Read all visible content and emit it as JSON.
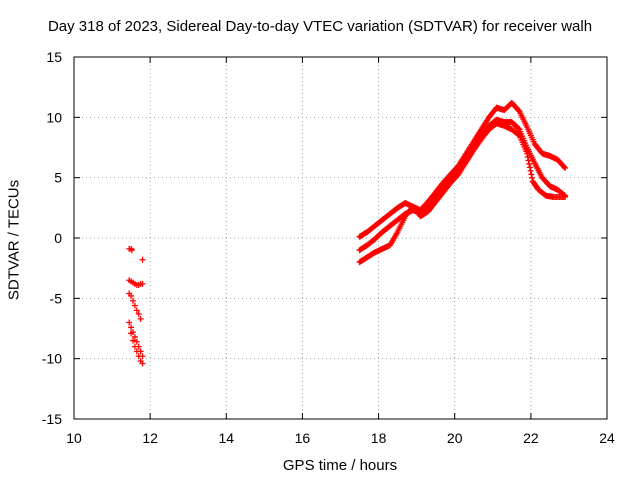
{
  "chart_data": {
    "type": "scatter",
    "title": "Day 318 of 2023, Sidereal Day-to-day VTEC variation (SDTVAR) for receiver walh",
    "xlabel": "GPS time / hours",
    "ylabel": "SDTVAR / TECUs",
    "xlim": [
      10,
      24
    ],
    "ylim": [
      -15,
      15
    ],
    "x_ticks": [
      "10",
      "12",
      "14",
      "16",
      "18",
      "20",
      "22",
      "24"
    ],
    "y_ticks": [
      "-15",
      "-10",
      "-5",
      "0",
      "5",
      "10",
      "15"
    ],
    "grid": true,
    "marker": "+",
    "marker_color": "#ff0000",
    "series": [
      {
        "name": "early-cluster",
        "points": [
          [
            11.45,
            -0.9
          ],
          [
            11.5,
            -0.9
          ],
          [
            11.52,
            -1.0
          ],
          [
            11.8,
            -1.8
          ],
          [
            11.45,
            -3.5
          ],
          [
            11.5,
            -3.6
          ],
          [
            11.55,
            -3.7
          ],
          [
            11.6,
            -3.8
          ],
          [
            11.65,
            -3.9
          ],
          [
            11.7,
            -3.9
          ],
          [
            11.75,
            -3.8
          ],
          [
            11.8,
            -3.8
          ],
          [
            11.45,
            -4.6
          ],
          [
            11.5,
            -4.8
          ],
          [
            11.55,
            -5.2
          ],
          [
            11.6,
            -5.6
          ],
          [
            11.65,
            -6.0
          ],
          [
            11.7,
            -6.3
          ],
          [
            11.75,
            -6.7
          ],
          [
            11.45,
            -7.0
          ],
          [
            11.5,
            -7.4
          ],
          [
            11.55,
            -7.8
          ],
          [
            11.6,
            -8.2
          ],
          [
            11.65,
            -8.6
          ],
          [
            11.7,
            -9.0
          ],
          [
            11.75,
            -9.4
          ],
          [
            11.8,
            -9.8
          ],
          [
            11.5,
            -7.9
          ],
          [
            11.55,
            -8.5
          ],
          [
            11.6,
            -9.0
          ],
          [
            11.65,
            -9.4
          ],
          [
            11.7,
            -9.8
          ],
          [
            11.75,
            -10.2
          ],
          [
            11.8,
            -10.4
          ]
        ]
      },
      {
        "name": "track-a",
        "points": [
          [
            17.5,
            0.1
          ],
          [
            17.7,
            0.5
          ],
          [
            17.9,
            1.0
          ],
          [
            18.1,
            1.5
          ],
          [
            18.3,
            2.0
          ],
          [
            18.5,
            2.5
          ],
          [
            18.7,
            2.9
          ],
          [
            18.9,
            2.6
          ],
          [
            19.1,
            2.3
          ],
          [
            19.3,
            3.0
          ],
          [
            19.5,
            3.8
          ],
          [
            19.7,
            4.6
          ],
          [
            19.9,
            5.3
          ],
          [
            20.1,
            6.0
          ],
          [
            20.3,
            7.0
          ],
          [
            20.5,
            8.0
          ],
          [
            20.7,
            9.0
          ],
          [
            20.9,
            10.0
          ],
          [
            21.1,
            10.8
          ],
          [
            21.3,
            10.6
          ],
          [
            21.5,
            11.2
          ],
          [
            21.7,
            10.5
          ],
          [
            21.9,
            9.2
          ],
          [
            22.1,
            7.8
          ],
          [
            22.3,
            7.0
          ],
          [
            22.5,
            6.8
          ],
          [
            22.7,
            6.5
          ],
          [
            22.9,
            5.8
          ]
        ]
      },
      {
        "name": "track-b",
        "points": [
          [
            17.5,
            -1.0
          ],
          [
            17.7,
            -0.6
          ],
          [
            17.9,
            -0.1
          ],
          [
            18.1,
            0.5
          ],
          [
            18.3,
            1.0
          ],
          [
            18.5,
            1.5
          ],
          [
            18.7,
            2.0
          ],
          [
            18.9,
            2.3
          ],
          [
            19.1,
            2.1
          ],
          [
            19.3,
            2.6
          ],
          [
            19.5,
            3.3
          ],
          [
            19.7,
            4.1
          ],
          [
            19.9,
            4.9
          ],
          [
            20.1,
            5.6
          ],
          [
            20.3,
            6.6
          ],
          [
            20.5,
            7.6
          ],
          [
            20.7,
            8.5
          ],
          [
            20.9,
            9.3
          ],
          [
            21.1,
            9.8
          ],
          [
            21.3,
            9.6
          ],
          [
            21.5,
            9.6
          ],
          [
            21.7,
            9.0
          ],
          [
            21.9,
            7.5
          ],
          [
            22.1,
            6.2
          ],
          [
            22.3,
            5.0
          ],
          [
            22.5,
            4.3
          ],
          [
            22.7,
            4.0
          ],
          [
            22.9,
            3.5
          ]
        ]
      },
      {
        "name": "track-c",
        "points": [
          [
            17.5,
            -2.0
          ],
          [
            17.7,
            -1.6
          ],
          [
            17.9,
            -1.2
          ],
          [
            18.1,
            -0.9
          ],
          [
            18.3,
            -0.6
          ],
          [
            18.5,
            0.5
          ],
          [
            18.7,
            1.8
          ],
          [
            18.9,
            2.6
          ],
          [
            19.1,
            1.8
          ],
          [
            19.3,
            2.2
          ],
          [
            19.5,
            3.0
          ],
          [
            19.7,
            3.8
          ],
          [
            19.9,
            4.6
          ],
          [
            20.1,
            5.3
          ],
          [
            20.3,
            6.3
          ],
          [
            20.5,
            7.3
          ],
          [
            20.7,
            8.2
          ],
          [
            20.9,
            9.0
          ],
          [
            21.1,
            9.5
          ],
          [
            21.3,
            9.3
          ],
          [
            21.5,
            9.0
          ],
          [
            21.7,
            8.5
          ],
          [
            21.9,
            7.0
          ],
          [
            22.05,
            4.7
          ],
          [
            22.2,
            4.0
          ],
          [
            22.4,
            3.5
          ],
          [
            22.6,
            3.4
          ],
          [
            22.9,
            3.4
          ]
        ]
      }
    ]
  }
}
